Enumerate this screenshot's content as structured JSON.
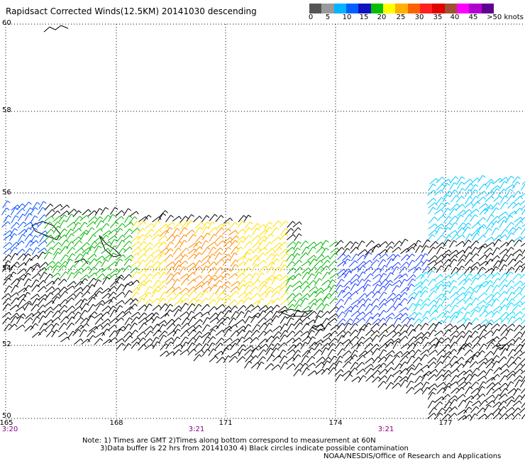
{
  "title": "Rapidsact Corrected Winds(12.5KM) 20141030 descending",
  "scale": {
    "colors": [
      "#555555",
      "#9a9a9a",
      "#00b4ff",
      "#0060ff",
      "#1010c0",
      "#00c000",
      "#ffff00",
      "#ffb000",
      "#ff6000",
      "#ff2020",
      "#e00000",
      "#a05030",
      "#ff00ff",
      "#b000d0",
      "#600090"
    ],
    "labels": [
      "0",
      "5",
      "10",
      "15",
      "20",
      "25",
      "30",
      "35",
      "40",
      "45",
      ">50 knots"
    ]
  },
  "lat_labels": [
    "60",
    "58",
    "56",
    "54",
    "52",
    "50"
  ],
  "lon_labels": [
    "165",
    "168",
    "171",
    "174",
    "177"
  ],
  "time_labels": [
    "3:20",
    "3:21",
    "3:21"
  ],
  "notes": {
    "line1": "Note: 1) Times are GMT 2)Times along bottom correspond to measurement at 60N",
    "line2": "3)Data buffer is 22 hrs from 20141030 4) Black circles indicate possible contamination",
    "line3": "NOAA/NESDIS/Office of Research and Applications"
  }
}
